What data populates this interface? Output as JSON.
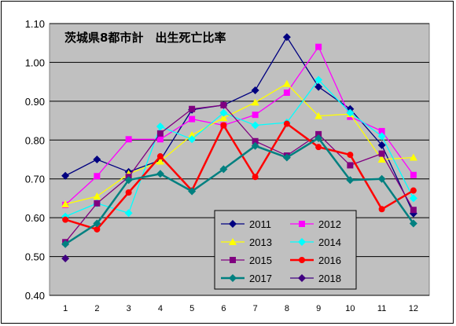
{
  "chart_data": {
    "type": "line",
    "title": "茨城県8都市計　出生死亡比率",
    "xlabel": "",
    "ylabel": "",
    "categories": [
      "1",
      "2",
      "3",
      "4",
      "5",
      "6",
      "7",
      "8",
      "9",
      "10",
      "11",
      "12"
    ],
    "ylim": [
      0.4,
      1.1
    ],
    "yticks": [
      "0.40",
      "0.50",
      "0.60",
      "0.70",
      "0.80",
      "0.90",
      "1.00",
      "1.10"
    ],
    "grid": true,
    "legend_position": "bottom-center",
    "series": [
      {
        "name": "2011",
        "color": "#000080",
        "marker": "diamond",
        "values": [
          0.708,
          0.75,
          0.718,
          0.748,
          0.878,
          0.89,
          0.928,
          1.065,
          0.937,
          0.88,
          0.787,
          0.611
        ]
      },
      {
        "name": "2012",
        "color": "#FF00FF",
        "marker": "square",
        "values": [
          0.633,
          0.707,
          0.802,
          0.802,
          0.854,
          0.838,
          0.865,
          0.922,
          1.04,
          0.86,
          0.823,
          0.71
        ]
      },
      {
        "name": "2013",
        "color": "#FFFF00",
        "marker": "triangle",
        "values": [
          0.635,
          0.655,
          0.713,
          0.745,
          0.813,
          0.857,
          0.897,
          0.945,
          0.862,
          0.867,
          0.75,
          0.755
        ]
      },
      {
        "name": "2014",
        "color": "#00FFFF",
        "marker": "diamond",
        "values": [
          0.603,
          0.637,
          0.612,
          0.835,
          0.802,
          0.87,
          0.838,
          0.845,
          0.955,
          0.87,
          0.81,
          0.65
        ]
      },
      {
        "name": "2015",
        "color": "#800080",
        "marker": "square",
        "values": [
          0.537,
          0.637,
          0.705,
          0.817,
          0.88,
          0.89,
          0.797,
          0.76,
          0.815,
          0.735,
          0.765,
          0.62
        ]
      },
      {
        "name": "2016",
        "color": "#FF0000",
        "marker": "circle",
        "values": [
          0.595,
          0.57,
          0.665,
          0.758,
          0.67,
          0.838,
          0.705,
          0.842,
          0.782,
          0.762,
          0.622,
          0.67
        ]
      },
      {
        "name": "2017",
        "color": "#008080",
        "marker": "diamond",
        "values": [
          0.532,
          0.585,
          0.697,
          0.713,
          0.668,
          0.725,
          0.785,
          0.755,
          0.805,
          0.697,
          0.7,
          0.585
        ]
      },
      {
        "name": "2018",
        "color": "#400080",
        "marker": "diamond",
        "values": [
          0.495,
          null,
          null,
          null,
          null,
          null,
          null,
          null,
          null,
          null,
          null,
          null
        ]
      }
    ]
  }
}
